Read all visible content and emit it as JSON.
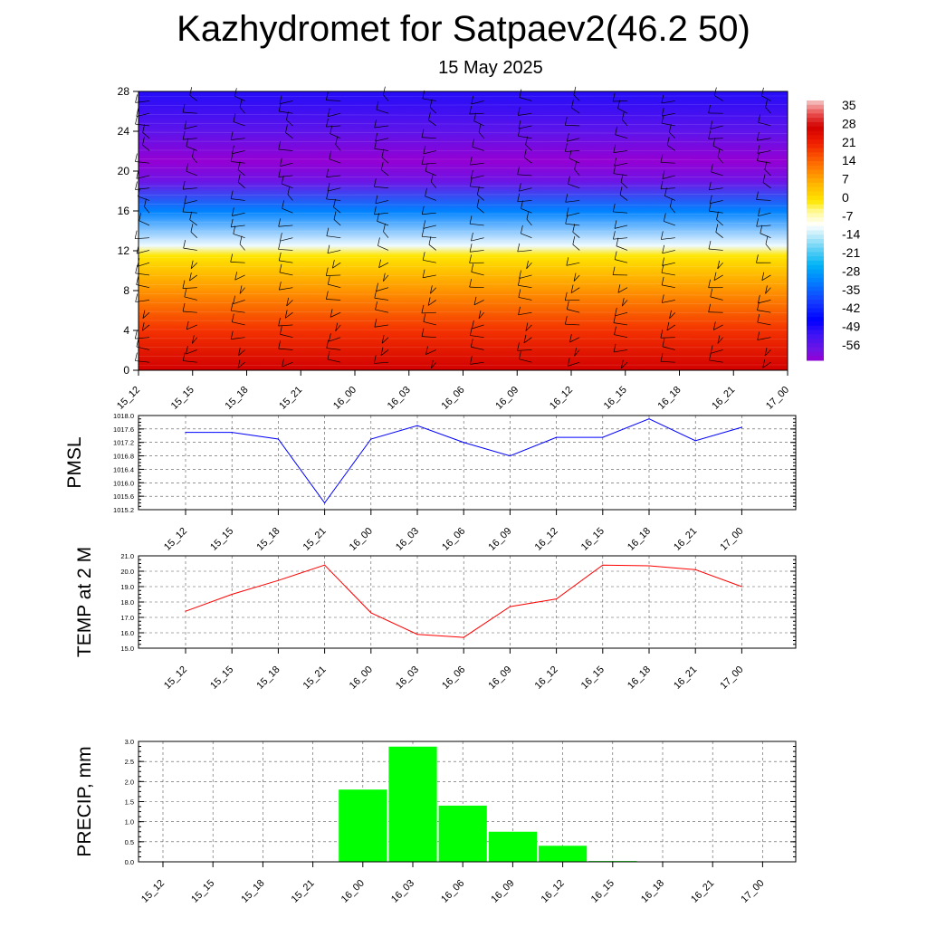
{
  "header": {
    "title": "Kazhydromet for Satpaev2(46.2 50)",
    "subtitle": "15 May 2025"
  },
  "time_labels": [
    "15_12",
    "15_15",
    "15_18",
    "15_21",
    "16_00",
    "16_03",
    "16_06",
    "16_09",
    "16_12",
    "16_15",
    "16_18",
    "16_21",
    "17_00"
  ],
  "colors": {
    "pmsl_line": "#0000ff",
    "temp_line": "#ff0000",
    "precip_bar": "#00ff00"
  },
  "chart_data": [
    {
      "type": "heatmap",
      "title": "",
      "x": [
        "15_12",
        "15_15",
        "15_18",
        "15_21",
        "16_00",
        "16_03",
        "16_06",
        "16_09",
        "16_12",
        "16_15",
        "16_18",
        "16_21",
        "17_00"
      ],
      "y_ticks": [
        0,
        4,
        8,
        12,
        16,
        20,
        24,
        28
      ],
      "ylim": [
        0,
        28
      ],
      "colorbar": {
        "labels": [
          "35",
          "28",
          "21",
          "14",
          "7",
          "0",
          "-7",
          "-14",
          "-21",
          "-28",
          "-35",
          "-42",
          "-49",
          "-56"
        ],
        "range": [
          -60,
          38
        ]
      },
      "profile": [
        {
          "level": 0,
          "value": 28
        },
        {
          "level": 4,
          "value": 20
        },
        {
          "level": 8,
          "value": 10
        },
        {
          "level": 11.5,
          "value": 0
        },
        {
          "level": 12.5,
          "value": -10
        },
        {
          "level": 16,
          "value": -30
        },
        {
          "level": 19,
          "value": -56
        },
        {
          "level": 21,
          "value": -60
        },
        {
          "level": 24,
          "value": -54
        },
        {
          "level": 28,
          "value": -48
        }
      ],
      "overlay": "wind barbs"
    },
    {
      "type": "line",
      "ylabel": "PMSL",
      "x": [
        "15_12",
        "15_15",
        "15_18",
        "15_21",
        "16_00",
        "16_03",
        "16_06",
        "16_09",
        "16_12",
        "16_15",
        "16_18",
        "16_21",
        "17_00"
      ],
      "series": [
        {
          "values": [
            1017.5,
            1017.5,
            1017.3,
            1015.4,
            1017.3,
            1017.7,
            1017.2,
            1016.8,
            1017.35,
            1017.35,
            1017.9,
            1017.25,
            1017.65
          ]
        }
      ],
      "ylim": [
        1015.2,
        1018.0
      ],
      "yticks": [
        "1015.2",
        "1015.6",
        "1016.0",
        "1016.4",
        "1016.8",
        "1017.2",
        "1017.6",
        "1018.0"
      ],
      "grid": true
    },
    {
      "type": "line",
      "ylabel": "TEMP at 2 M",
      "x": [
        "15_12",
        "15_15",
        "15_18",
        "15_21",
        "16_00",
        "16_03",
        "16_06",
        "16_09",
        "16_12",
        "16_15",
        "16_18",
        "16_21",
        "17_00"
      ],
      "series": [
        {
          "values": [
            17.4,
            18.5,
            19.4,
            20.4,
            17.3,
            15.9,
            15.7,
            17.7,
            18.2,
            20.4,
            20.35,
            20.1,
            19.0
          ]
        }
      ],
      "ylim": [
        15.0,
        21.0
      ],
      "yticks": [
        "15.0",
        "16.0",
        "17.0",
        "18.0",
        "19.0",
        "20.0",
        "21.0"
      ],
      "grid": true
    },
    {
      "type": "bar",
      "ylabel": "PRECIP, mm",
      "categories": [
        "15_12",
        "15_15",
        "15_18",
        "15_21",
        "16_00",
        "16_03",
        "16_06",
        "16_09",
        "16_12",
        "16_15",
        "16_18",
        "16_21",
        "17_00"
      ],
      "values": [
        0,
        0,
        0,
        0,
        1.8,
        2.87,
        1.4,
        0.75,
        0.4,
        0.02,
        0,
        0,
        0
      ],
      "ylim": [
        0,
        3.0
      ],
      "yticks": [
        "0.0",
        "0.5",
        "1.0",
        "1.5",
        "2.0",
        "2.5",
        "3.0"
      ],
      "grid": true
    }
  ]
}
